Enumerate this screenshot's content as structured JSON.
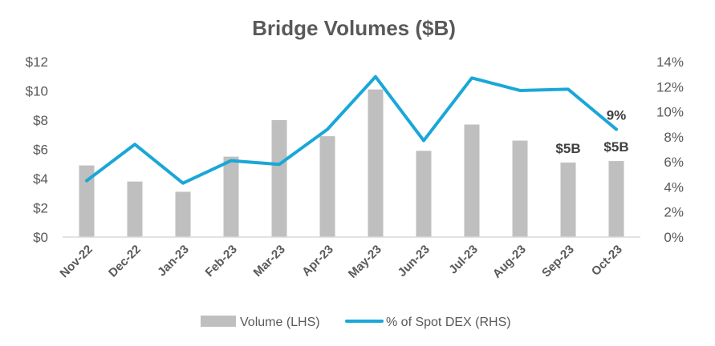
{
  "chart_data": {
    "type": "bar+line",
    "title": "Bridge Volumes ($B)",
    "categories": [
      "Nov-22",
      "Dec-22",
      "Jan-23",
      "Feb-23",
      "Mar-23",
      "Apr-23",
      "May-23",
      "Jun-23",
      "Jul-23",
      "Aug-23",
      "Sep-23",
      "Oct-23"
    ],
    "series": [
      {
        "name": "Volume (LHS)",
        "type": "bar",
        "axis": "left",
        "color": "#BFBFBF",
        "values": [
          4.9,
          3.8,
          3.1,
          5.5,
          8.0,
          6.9,
          10.1,
          5.9,
          7.7,
          6.6,
          5.1,
          5.2
        ]
      },
      {
        "name": "% of Spot DEX (RHS)",
        "type": "line",
        "axis": "right",
        "color": "#1AA7D8",
        "values": [
          4.5,
          7.4,
          4.3,
          6.1,
          5.8,
          8.6,
          12.8,
          7.7,
          12.7,
          11.7,
          11.8,
          8.6
        ]
      }
    ],
    "left_axis": {
      "min": 0,
      "max": 12,
      "step": 2,
      "tick_labels": [
        "$0",
        "$2",
        "$4",
        "$6",
        "$8",
        "$10",
        "$12"
      ]
    },
    "right_axis": {
      "min": 0,
      "max": 14,
      "step": 2,
      "tick_labels": [
        "0%",
        "2%",
        "4%",
        "6%",
        "8%",
        "10%",
        "12%",
        "14%"
      ]
    },
    "annotations": [
      {
        "text": "$5B",
        "category": "Sep-23",
        "series": "Volume (LHS)"
      },
      {
        "text": "$5B",
        "category": "Oct-23",
        "series": "Volume (LHS)"
      },
      {
        "text": "9%",
        "category": "Oct-23",
        "series": "% of Spot DEX (RHS)"
      }
    ],
    "grid": false,
    "legend_position": "bottom"
  }
}
